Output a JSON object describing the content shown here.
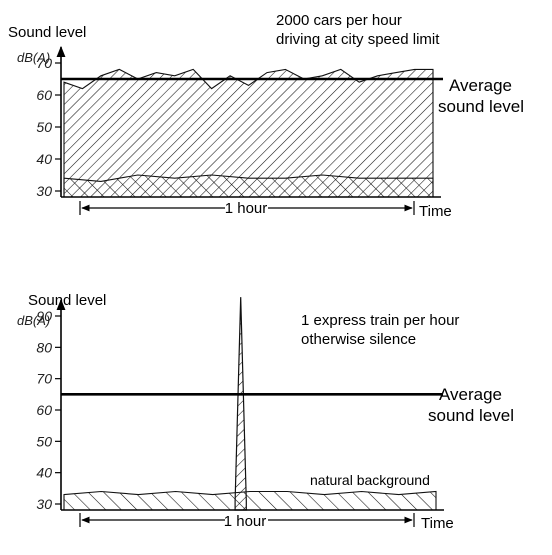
{
  "chart_data": [
    {
      "type": "area",
      "title": "2000 cars per hour\ndriving at city speed limit",
      "ylabel": "Sound level",
      "yunit": "dB(A)",
      "xlabel": "Time",
      "duration_label": "1 hour",
      "ylim": [
        30,
        70
      ],
      "yticks": [
        30,
        40,
        50,
        60,
        70
      ],
      "x_unit": "hour fraction",
      "average": {
        "value": 65,
        "label": "Average\nsound level"
      },
      "series": [
        {
          "x": [
            0,
            0.05,
            0.1,
            0.15,
            0.2,
            0.25,
            0.3,
            0.35,
            0.4,
            0.45,
            0.5,
            0.55,
            0.6,
            0.65,
            0.7,
            0.75,
            0.8,
            0.85,
            0.9,
            0.95,
            1
          ],
          "values": [
            64,
            62,
            66,
            68,
            65,
            67,
            66,
            68,
            62,
            66,
            63,
            67,
            68,
            65,
            66,
            68,
            64,
            66,
            67,
            68,
            68
          ]
        },
        {
          "x": [
            0,
            0.1,
            0.2,
            0.3,
            0.4,
            0.5,
            0.6,
            0.7,
            0.8,
            0.9,
            1
          ],
          "values": [
            34,
            33,
            35,
            34,
            35,
            34,
            34,
            35,
            34,
            34,
            34
          ]
        }
      ]
    },
    {
      "type": "area",
      "title": "1 express train per hour\notherwise silence",
      "ylabel": "Sound level",
      "yunit": "dB(A)",
      "xlabel": "Time",
      "duration_label": "1 hour",
      "ylim": [
        30,
        90
      ],
      "yticks": [
        30,
        40,
        50,
        60,
        70,
        80,
        90
      ],
      "x_unit": "hour fraction",
      "average": {
        "value": 65,
        "label": "Average\nsound level"
      },
      "annotation": "natural background",
      "series": [
        {
          "x": [
            0.46,
            0.475,
            0.49
          ],
          "values": [
            31,
            96,
            31
          ]
        },
        {
          "x": [
            0,
            0.1,
            0.2,
            0.3,
            0.4,
            0.5,
            0.6,
            0.7,
            0.8,
            0.9,
            1
          ],
          "values": [
            33,
            34,
            33,
            34,
            33,
            34,
            34,
            33,
            34,
            33,
            34
          ]
        }
      ]
    }
  ]
}
